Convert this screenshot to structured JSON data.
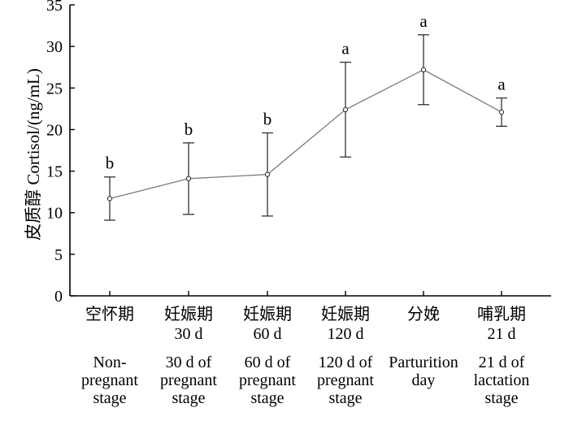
{
  "chart_data": {
    "type": "line",
    "ylabel": "皮质醇 Cortisol/(ng/mL)",
    "ylim": [
      0,
      35
    ],
    "yticks": [
      0,
      5,
      10,
      15,
      20,
      25,
      30,
      35
    ],
    "grid": false,
    "legend": "none",
    "line_color": "#7a7a7a",
    "categories": [
      {
        "cn": [
          "空怀期"
        ],
        "en": [
          "Non-",
          "pregnant",
          "stage"
        ]
      },
      {
        "cn": [
          "妊娠期",
          "30 d"
        ],
        "en": [
          "30 d of",
          "pregnant",
          "stage"
        ]
      },
      {
        "cn": [
          "妊娠期",
          "60 d"
        ],
        "en": [
          "60 d of",
          "pregnant",
          "stage"
        ]
      },
      {
        "cn": [
          "妊娠期",
          "120 d"
        ],
        "en": [
          "120 d of",
          "pregnant",
          "stage"
        ]
      },
      {
        "cn": [
          "分娩"
        ],
        "en": [
          "Parturition",
          "day"
        ]
      },
      {
        "cn": [
          "哺乳期",
          "21 d"
        ],
        "en": [
          "21 d of",
          "lactation",
          "stage"
        ]
      }
    ],
    "series": [
      {
        "values": [
          11.7,
          14.1,
          14.6,
          22.4,
          27.2,
          22.1
        ],
        "error": [
          2.6,
          4.3,
          5.0,
          5.7,
          4.2,
          1.7
        ],
        "significance": [
          "b",
          "b",
          "b",
          "a",
          "a",
          "a"
        ]
      }
    ]
  }
}
